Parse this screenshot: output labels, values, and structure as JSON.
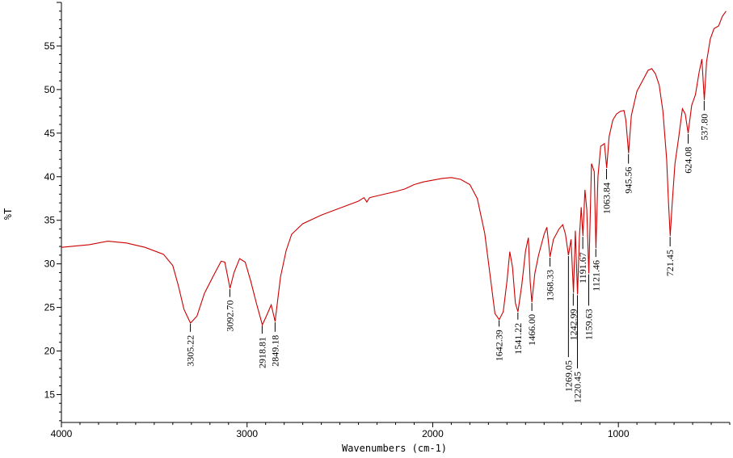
{
  "chart_data": {
    "type": "line",
    "title": "",
    "xlabel": "Wavenumbers (cm-1)",
    "ylabel": "%T",
    "xlim": [
      4000,
      400
    ],
    "ylim": [
      11.8,
      60
    ],
    "x_ticks": [
      4000,
      3000,
      2000,
      1000
    ],
    "y_ticks": [
      15,
      20,
      25,
      30,
      35,
      40,
      45,
      50,
      55
    ],
    "grid": false,
    "series": [
      {
        "color": "#cc0000",
        "points": [
          [
            4000,
            31.9
          ],
          [
            3850,
            32.2
          ],
          [
            3750,
            32.6
          ],
          [
            3650,
            32.4
          ],
          [
            3550,
            31.9
          ],
          [
            3450,
            31.1
          ],
          [
            3400,
            29.8
          ],
          [
            3370,
            27.5
          ],
          [
            3340,
            24.8
          ],
          [
            3305,
            23.2
          ],
          [
            3270,
            24.0
          ],
          [
            3230,
            26.6
          ],
          [
            3180,
            28.7
          ],
          [
            3140,
            30.3
          ],
          [
            3120,
            30.2
          ],
          [
            3092,
            27.2
          ],
          [
            3070,
            29.0
          ],
          [
            3040,
            30.6
          ],
          [
            3010,
            30.2
          ],
          [
            2980,
            28.0
          ],
          [
            2950,
            25.5
          ],
          [
            2918,
            23.0
          ],
          [
            2890,
            24.3
          ],
          [
            2870,
            25.3
          ],
          [
            2849,
            23.4
          ],
          [
            2820,
            28.5
          ],
          [
            2790,
            31.5
          ],
          [
            2760,
            33.4
          ],
          [
            2700,
            34.6
          ],
          [
            2600,
            35.6
          ],
          [
            2500,
            36.4
          ],
          [
            2400,
            37.2
          ],
          [
            2370,
            37.6
          ],
          [
            2355,
            37.1
          ],
          [
            2340,
            37.6
          ],
          [
            2300,
            37.8
          ],
          [
            2200,
            38.3
          ],
          [
            2150,
            38.6
          ],
          [
            2100,
            39.1
          ],
          [
            2050,
            39.4
          ],
          [
            2000,
            39.6
          ],
          [
            1950,
            39.8
          ],
          [
            1900,
            39.9
          ],
          [
            1850,
            39.7
          ],
          [
            1800,
            39.1
          ],
          [
            1760,
            37.5
          ],
          [
            1720,
            33.5
          ],
          [
            1690,
            28.5
          ],
          [
            1665,
            24.3
          ],
          [
            1642,
            23.6
          ],
          [
            1620,
            24.5
          ],
          [
            1600,
            28.0
          ],
          [
            1585,
            31.4
          ],
          [
            1570,
            29.6
          ],
          [
            1555,
            25.5
          ],
          [
            1541,
            24.5
          ],
          [
            1520,
            27.6
          ],
          [
            1500,
            31.5
          ],
          [
            1485,
            33.0
          ],
          [
            1475,
            28.0
          ],
          [
            1466,
            25.6
          ],
          [
            1450,
            28.9
          ],
          [
            1430,
            31.0
          ],
          [
            1400,
            33.4
          ],
          [
            1385,
            34.2
          ],
          [
            1368,
            30.8
          ],
          [
            1350,
            32.8
          ],
          [
            1320,
            34.0
          ],
          [
            1300,
            34.5
          ],
          [
            1285,
            33.4
          ],
          [
            1269,
            31.0
          ],
          [
            1255,
            32.8
          ],
          [
            1242,
            26.7
          ],
          [
            1232,
            33.8
          ],
          [
            1220,
            26.5
          ],
          [
            1210,
            33.0
          ],
          [
            1200,
            36.5
          ],
          [
            1191,
            33.2
          ],
          [
            1180,
            38.5
          ],
          [
            1170,
            36.2
          ],
          [
            1159,
            28.9
          ],
          [
            1145,
            41.5
          ],
          [
            1130,
            40.6
          ],
          [
            1121,
            31.8
          ],
          [
            1110,
            40.0
          ],
          [
            1095,
            43.5
          ],
          [
            1075,
            43.8
          ],
          [
            1063,
            41.0
          ],
          [
            1050,
            44.6
          ],
          [
            1030,
            46.5
          ],
          [
            1010,
            47.2
          ],
          [
            990,
            47.5
          ],
          [
            970,
            47.6
          ],
          [
            960,
            46.5
          ],
          [
            945,
            42.7
          ],
          [
            930,
            47.0
          ],
          [
            900,
            49.8
          ],
          [
            870,
            51.0
          ],
          [
            840,
            52.2
          ],
          [
            820,
            52.4
          ],
          [
            800,
            51.8
          ],
          [
            780,
            50.5
          ],
          [
            760,
            47.5
          ],
          [
            740,
            42.0
          ],
          [
            730,
            37.0
          ],
          [
            721,
            33.2
          ],
          [
            710,
            37.0
          ],
          [
            695,
            41.5
          ],
          [
            675,
            44.5
          ],
          [
            655,
            47.8
          ],
          [
            640,
            47.2
          ],
          [
            624,
            45.0
          ],
          [
            605,
            48.2
          ],
          [
            585,
            49.4
          ],
          [
            565,
            52.0
          ],
          [
            550,
            53.5
          ],
          [
            537,
            48.8
          ],
          [
            525,
            53.2
          ],
          [
            505,
            55.8
          ],
          [
            485,
            57.0
          ],
          [
            460,
            57.3
          ],
          [
            440,
            58.4
          ],
          [
            420,
            59.0
          ]
        ]
      }
    ],
    "annotations": [
      {
        "x": 3305.22,
        "y": 23.2,
        "end_y": 22.2,
        "label": "3305.22"
      },
      {
        "x": 3092.7,
        "y": 27.2,
        "end_y": 26.2,
        "label": "3092.70"
      },
      {
        "x": 2918.81,
        "y": 23.0,
        "end_y": 22.0,
        "label": "2918.81"
      },
      {
        "x": 2849.18,
        "y": 23.4,
        "end_y": 22.2,
        "label": "2849.18"
      },
      {
        "x": 1642.39,
        "y": 23.6,
        "end_y": 22.8,
        "label": "1642.39"
      },
      {
        "x": 1541.22,
        "y": 24.5,
        "end_y": 23.6,
        "label": "1541.22"
      },
      {
        "x": 1466.0,
        "y": 25.6,
        "end_y": 24.6,
        "label": "1466.00"
      },
      {
        "x": 1368.33,
        "y": 30.8,
        "end_y": 29.7,
        "label": "1368.33"
      },
      {
        "x": 1269.05,
        "y": 31.0,
        "end_y": 19.3,
        "label": "1269.05"
      },
      {
        "x": 1242.99,
        "y": 26.7,
        "end_y": 25.2,
        "label": "1242.99"
      },
      {
        "x": 1220.45,
        "y": 26.5,
        "end_y": 18.0,
        "label": "1220.45"
      },
      {
        "x": 1191.67,
        "y": 33.2,
        "end_y": 31.7,
        "label": "1191.67"
      },
      {
        "x": 1159.63,
        "y": 28.9,
        "end_y": 25.2,
        "label": "1159.63"
      },
      {
        "x": 1121.46,
        "y": 31.8,
        "end_y": 30.8,
        "label": "1121.46"
      },
      {
        "x": 1063.84,
        "y": 41.0,
        "end_y": 39.7,
        "label": "1063.84"
      },
      {
        "x": 945.56,
        "y": 42.7,
        "end_y": 41.5,
        "label": "945.56"
      },
      {
        "x": 721.45,
        "y": 33.2,
        "end_y": 32.0,
        "label": "721.45"
      },
      {
        "x": 624.08,
        "y": 45.0,
        "end_y": 43.8,
        "label": "624.08"
      },
      {
        "x": 537.8,
        "y": 48.8,
        "end_y": 47.6,
        "label": "537.80"
      }
    ]
  }
}
